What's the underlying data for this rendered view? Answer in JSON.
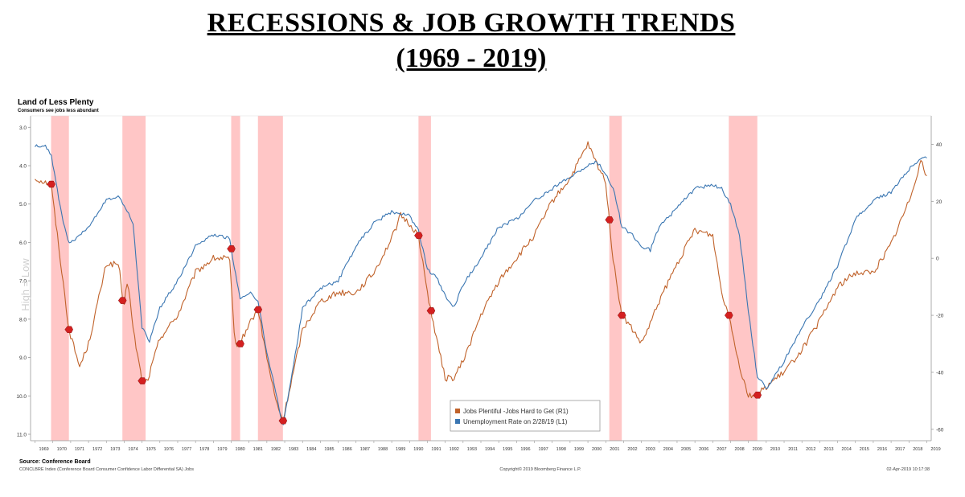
{
  "header": {
    "title": "RECESSIONS & JOB GROWTH TRENDS",
    "subtitle": "(1969 - 2019)"
  },
  "chart_data": {
    "type": "line",
    "title": "Land of Less Plenty",
    "subtitle": "Consumers see jobs less abundant",
    "left_axis_side_label": "High = Low",
    "left_axis_inverted": true,
    "left_axis_ticks": [
      "3.0",
      "4.0",
      "5.0",
      "6.0",
      "7.0",
      "8.0",
      "9.0",
      "10.0",
      "11.0"
    ],
    "right_axis_ticks": [
      "40",
      "20",
      "0",
      "-20",
      "-40",
      "-60"
    ],
    "ylim_left": [
      3.0,
      11.0
    ],
    "ylim_right": [
      -64,
      50
    ],
    "xlim": [
      1968.75,
      2019.25
    ],
    "x_tick_labels": [
      "1969",
      "1970",
      "1971",
      "1972",
      "1973",
      "1974",
      "1975",
      "1976",
      "1977",
      "1978",
      "1979",
      "1980",
      "1981",
      "1982",
      "1983",
      "1984",
      "1985",
      "1986",
      "1987",
      "1988",
      "1989",
      "1990",
      "1991",
      "1992",
      "1993",
      "1994",
      "1995",
      "1996",
      "1997",
      "1998",
      "1999",
      "2000",
      "2001",
      "2002",
      "2003",
      "2004",
      "2005",
      "2006",
      "2007",
      "2008",
      "2009",
      "2010",
      "2011",
      "2012",
      "2013",
      "2014",
      "2015",
      "2016",
      "2017",
      "2018",
      "2019"
    ],
    "recessions": [
      [
        1969.9,
        1970.9
      ],
      [
        1973.9,
        1975.2
      ],
      [
        1980.0,
        1980.5
      ],
      [
        1981.5,
        1982.9
      ],
      [
        1990.5,
        1991.2
      ],
      [
        2001.2,
        2001.9
      ],
      [
        2007.9,
        2009.5
      ]
    ],
    "legend_position": "bottom-center",
    "series": [
      {
        "name": "Jobs Plentiful -Jobs Hard to Get (R1)",
        "axis": "right",
        "color": "#c0622a",
        "x": [
          1969.0,
          1969.9,
          1970.9,
          1971.5,
          1972.0,
          1973.0,
          1973.7,
          1973.95,
          1974.2,
          1974.5,
          1975.0,
          1975.3,
          1976.0,
          1977.0,
          1978.0,
          1979.0,
          1979.9,
          1980.2,
          1980.5,
          1981.0,
          1981.5,
          1982.0,
          1982.5,
          1982.9,
          1984.0,
          1985.0,
          1986.0,
          1987.0,
          1988.0,
          1989.0,
          1989.5,
          1990.0,
          1990.5,
          1991.0,
          1991.5,
          1992.0,
          1992.5,
          1993.0,
          1994.0,
          1995.0,
          1996.0,
          1997.0,
          1998.0,
          1999.0,
          2000.0,
          2000.5,
          2001.0,
          2001.4,
          2001.9,
          2002.5,
          2003.0,
          2003.5,
          2004.0,
          2005.0,
          2006.0,
          2007.0,
          2007.5,
          2008.0,
          2008.5,
          2009.0,
          2009.5,
          2010.0,
          2011.0,
          2012.0,
          2013.0,
          2014.0,
          2015.0,
          2016.0,
          2017.0,
          2018.0,
          2018.7,
          2019.0
        ],
        "y": [
          28,
          26,
          -25,
          -38,
          -30,
          -2,
          -2,
          -18,
          -7,
          -25,
          -43,
          -43,
          -28,
          -20,
          -5,
          0,
          0,
          -30,
          -30,
          -23,
          -18,
          -35,
          -50,
          -57,
          -25,
          -15,
          -12,
          -12,
          -5,
          7,
          15,
          12,
          8,
          -12,
          -28,
          -42,
          -42,
          -36,
          -20,
          -8,
          0,
          8,
          20,
          28,
          40,
          33,
          27,
          0,
          -20,
          -25,
          -30,
          -23,
          -15,
          -2,
          10,
          8,
          -12,
          -22,
          -38,
          -48,
          -48,
          -45,
          -40,
          -32,
          -22,
          -10,
          -5,
          -5,
          5,
          20,
          35,
          28
        ]
      },
      {
        "name": "Unemployment Rate on 2/28/19 (L1)",
        "axis": "left",
        "color": "#3a76b2",
        "x": [
          1969.0,
          1969.6,
          1969.9,
          1970.5,
          1970.9,
          1971.0,
          1972.0,
          1973.0,
          1973.7,
          1973.95,
          1974.5,
          1975.0,
          1975.4,
          1976.0,
          1977.0,
          1978.0,
          1979.0,
          1979.9,
          1980.5,
          1981.0,
          1981.5,
          1982.0,
          1982.5,
          1982.9,
          1983.5,
          1984.0,
          1985.0,
          1986.0,
          1987.0,
          1988.0,
          1989.0,
          1990.0,
          1990.5,
          1991.0,
          1991.5,
          1992.0,
          1992.5,
          1993.0,
          1994.0,
          1995.0,
          1996.0,
          1997.0,
          1998.0,
          1999.0,
          2000.0,
          2000.5,
          2001.0,
          2001.5,
          2001.9,
          2002.5,
          2003.0,
          2003.5,
          2004.0,
          2005.0,
          2006.0,
          2007.0,
          2007.5,
          2008.0,
          2008.5,
          2009.0,
          2009.5,
          2010.0,
          2011.0,
          2012.0,
          2013.0,
          2014.0,
          2015.0,
          2016.0,
          2017.0,
          2018.0,
          2018.7,
          2019.0
        ],
        "y": [
          3.5,
          3.5,
          3.7,
          5.3,
          6.0,
          6.0,
          5.6,
          4.9,
          4.8,
          5.0,
          5.5,
          8.2,
          8.6,
          7.7,
          7.0,
          6.1,
          5.8,
          5.9,
          7.5,
          7.3,
          7.5,
          8.9,
          9.9,
          10.8,
          9.2,
          7.7,
          7.2,
          7.0,
          6.1,
          5.5,
          5.2,
          5.3,
          5.7,
          6.7,
          6.9,
          7.4,
          7.7,
          7.1,
          6.4,
          5.6,
          5.4,
          4.9,
          4.6,
          4.3,
          4.0,
          3.9,
          4.2,
          4.7,
          5.6,
          5.8,
          6.1,
          6.2,
          5.6,
          5.1,
          4.6,
          4.5,
          4.6,
          5.0,
          5.8,
          7.8,
          9.5,
          9.8,
          9.1,
          8.2,
          7.5,
          6.6,
          5.4,
          4.9,
          4.7,
          4.1,
          3.8,
          3.8
        ]
      }
    ],
    "markers": [
      {
        "x": 1969.9,
        "series": 0
      },
      {
        "x": 1970.9,
        "series": 0
      },
      {
        "x": 1973.9,
        "series": 0
      },
      {
        "x": 1975.0,
        "series": 0
      },
      {
        "x": 1980.0,
        "series": 1
      },
      {
        "x": 1980.5,
        "series": 0
      },
      {
        "x": 1981.5,
        "series": 0
      },
      {
        "x": 1982.9,
        "series": 0
      },
      {
        "x": 1990.5,
        "series": 0
      },
      {
        "x": 1991.2,
        "series": 0
      },
      {
        "x": 2001.2,
        "series": 0
      },
      {
        "x": 2001.9,
        "series": 0
      },
      {
        "x": 2007.9,
        "series": 0
      },
      {
        "x": 2009.5,
        "series": 0
      }
    ],
    "source": "Source: Conference Board",
    "footer_left": "CONCLBRE Index (Conference Board Consumer Confidence Labor Differential SA) Jobs",
    "footer_center": "Copyright© 2019 Bloomberg Finance L.P.",
    "footer_right": "02-Apr-2019 10:17:38"
  },
  "colors": {
    "recession_band": "#ffc6c6",
    "marker": "#d42020",
    "axis": "#999999",
    "tick_text": "#333333"
  }
}
